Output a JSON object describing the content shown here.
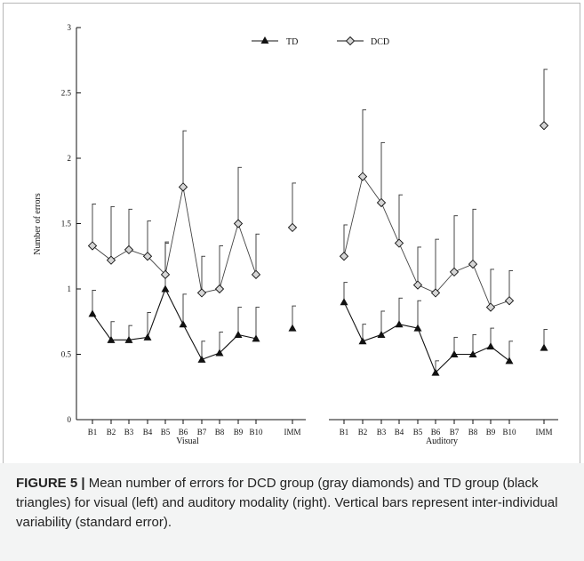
{
  "chart_data": {
    "type": "line",
    "ylabel": "Number of errors",
    "ylim": [
      0,
      3
    ],
    "yticks": [
      "0",
      "0.5",
      "1",
      "1.5",
      "2",
      "2.5",
      "3"
    ],
    "panels": [
      {
        "xlabel": "Visual",
        "categories": [
          "B1",
          "B2",
          "B3",
          "B4",
          "B5",
          "B6",
          "B7",
          "B8",
          "B9",
          "B10",
          "IMM"
        ],
        "series": [
          {
            "name": "TD",
            "values": [
              0.81,
              0.61,
              0.61,
              0.63,
              1.0,
              0.73,
              0.46,
              0.51,
              0.65,
              0.62,
              0.7
            ],
            "errors": [
              0.18,
              0.14,
              0.11,
              0.19,
              0.35,
              0.23,
              0.14,
              0.16,
              0.21,
              0.24,
              0.17
            ]
          },
          {
            "name": "DCD",
            "values": [
              1.33,
              1.22,
              1.3,
              1.25,
              1.11,
              1.78,
              0.97,
              1.0,
              1.5,
              1.11,
              1.47
            ],
            "errors": [
              0.32,
              0.41,
              0.31,
              0.27,
              0.25,
              0.43,
              0.28,
              0.33,
              0.43,
              0.31,
              0.34
            ]
          }
        ]
      },
      {
        "xlabel": "Auditory",
        "categories": [
          "B1",
          "B2",
          "B3",
          "B4",
          "B5",
          "B6",
          "B7",
          "B8",
          "B9",
          "B10",
          "IMM"
        ],
        "series": [
          {
            "name": "TD",
            "values": [
              0.9,
              0.6,
              0.65,
              0.73,
              0.7,
              0.36,
              0.5,
              0.5,
              0.56,
              0.45,
              0.55
            ],
            "errors": [
              0.15,
              0.13,
              0.18,
              0.2,
              0.21,
              0.09,
              0.13,
              0.15,
              0.14,
              0.15,
              0.14
            ]
          },
          {
            "name": "DCD",
            "values": [
              1.25,
              1.86,
              1.66,
              1.35,
              1.03,
              0.97,
              1.13,
              1.19,
              0.86,
              0.91,
              2.25
            ],
            "errors": [
              0.24,
              0.51,
              0.46,
              0.37,
              0.29,
              0.41,
              0.43,
              0.42,
              0.29,
              0.23,
              0.43
            ]
          }
        ]
      }
    ],
    "legend": {
      "placement": "top-center",
      "entries": [
        "TD",
        "DCD"
      ]
    },
    "grid": false
  },
  "caption": {
    "label": "FIGURE 5 |",
    "text": "Mean number of errors for DCD group (gray diamonds) and TD group (black triangles) for visual (left) and auditory modality (right). Vertical bars represent inter-individual variability (standard error)."
  }
}
